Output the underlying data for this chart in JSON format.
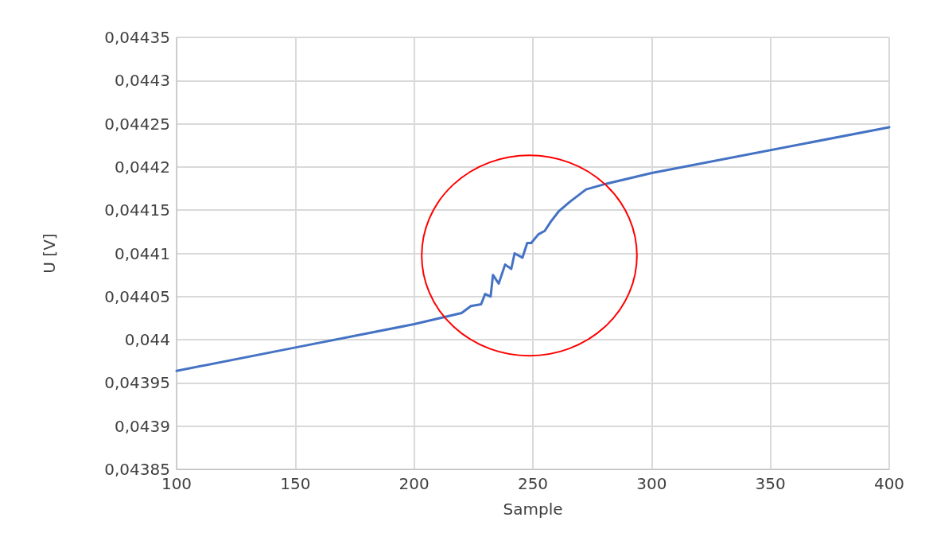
{
  "chart_data": {
    "type": "line",
    "xlabel": "Sample",
    "ylabel": "U [V]",
    "grid": true,
    "marker": "none",
    "line_style": "solid",
    "x": [
      100,
      150,
      200,
      220,
      223.9,
      228.2,
      229.9,
      232.2,
      233.2,
      235.6,
      238.3,
      240.9,
      242.3,
      245.6,
      247.6,
      249.3,
      252.3,
      255,
      257.6,
      261,
      265.7,
      272.4,
      280.1,
      300,
      400
    ],
    "series": [
      {
        "color": "#4472c4",
        "values": [
          0.043964,
          0.043991,
          0.044018,
          0.044031,
          0.044039,
          0.044041,
          0.044053,
          0.04405,
          0.044075,
          0.044065,
          0.044087,
          0.044082,
          0.0441,
          0.044095,
          0.044112,
          0.044112,
          0.044122,
          0.044126,
          0.044137,
          0.044149,
          0.04416,
          0.044174,
          0.04418,
          0.044193,
          0.044246
        ]
      }
    ],
    "xlim": [
      100,
      400
    ],
    "xticks": [
      100,
      150,
      200,
      250,
      300,
      350,
      400
    ],
    "ylim": [
      0.04385,
      0.04435
    ],
    "yticks": [
      {
        "value": 0.04385,
        "label": "0,04385"
      },
      {
        "value": 0.0439,
        "label": "0,0439"
      },
      {
        "value": 0.04395,
        "label": "0,04395"
      },
      {
        "value": 0.044,
        "label": "0,044"
      },
      {
        "value": 0.04405,
        "label": "0,04405"
      },
      {
        "value": 0.0441,
        "label": "0,0441"
      },
      {
        "value": 0.04415,
        "label": "0,04415"
      },
      {
        "value": 0.0442,
        "label": "0,0442"
      },
      {
        "value": 0.04425,
        "label": "0,04425"
      },
      {
        "value": 0.0443,
        "label": "0,0443"
      },
      {
        "value": 0.04435,
        "label": "0,04435"
      }
    ]
  }
}
